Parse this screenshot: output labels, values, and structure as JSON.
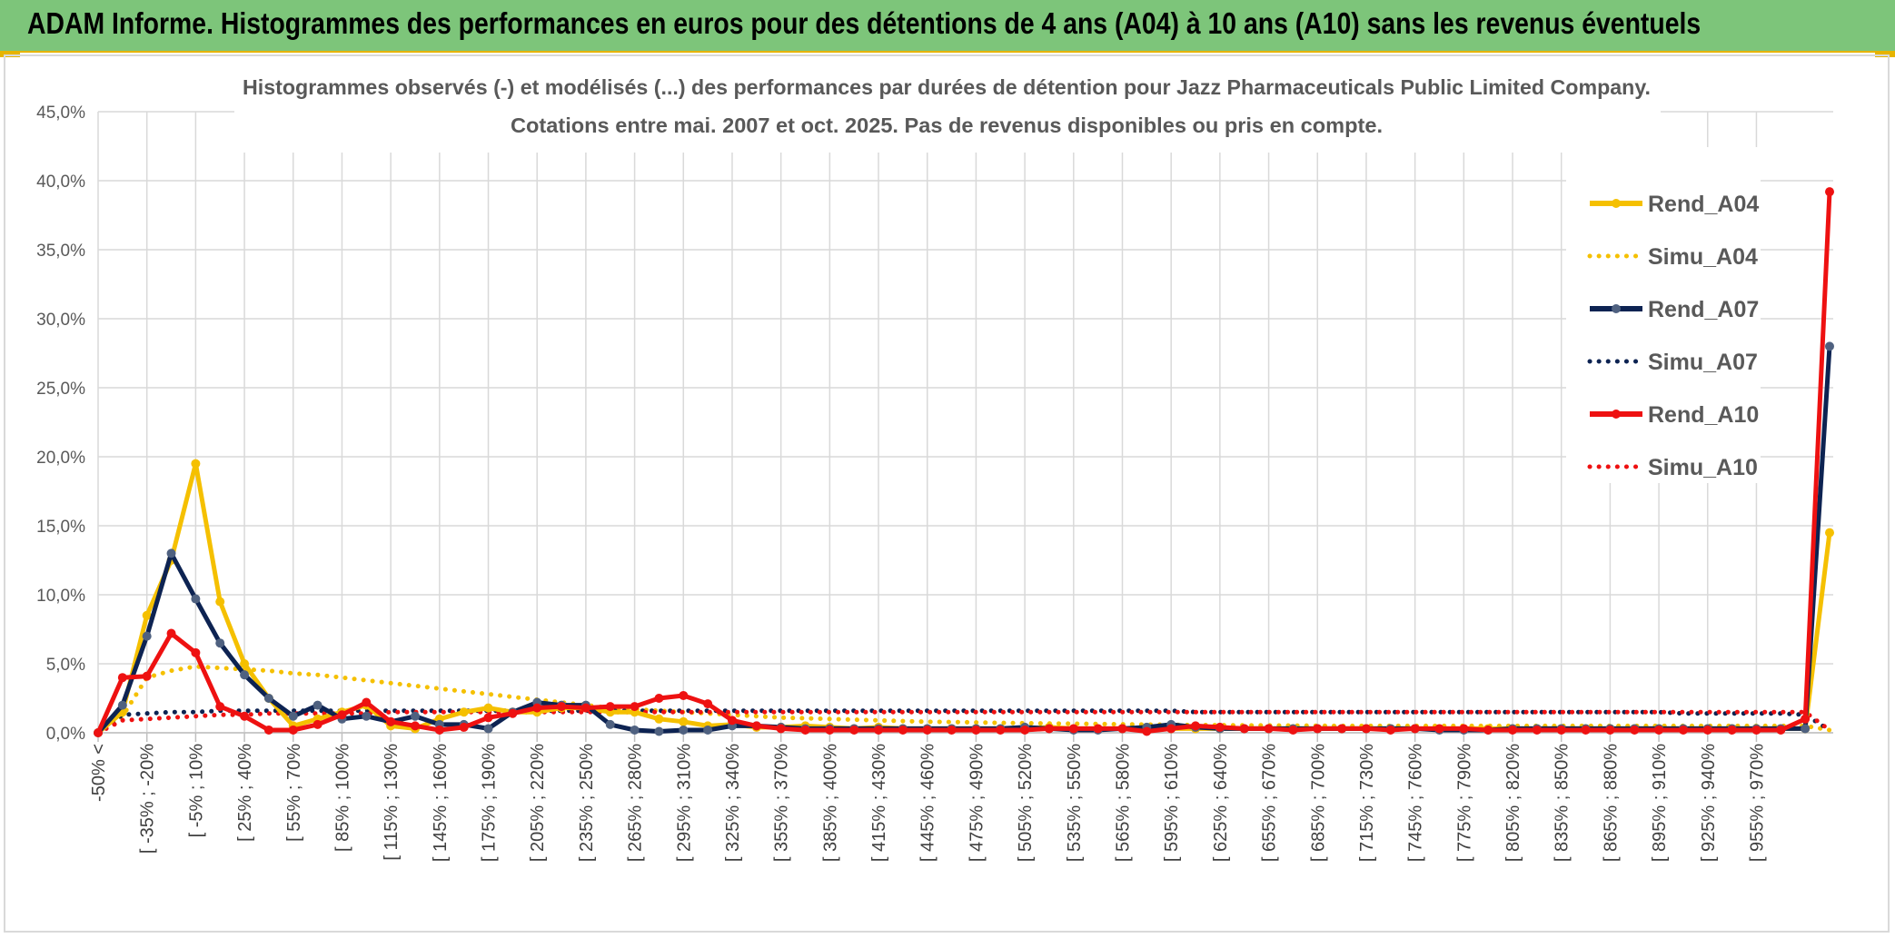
{
  "banner": {
    "title": "ADAM Informe. Histogrammes des performances en euros pour des détentions de 4 ans (A04) à 10 ans (A10) sans les revenus éventuels"
  },
  "chart_data": {
    "type": "line",
    "title": "Histogrammes observés (-) et modélisés (...) des performances par durées de détention pour Jazz Pharmaceuticals Public Limited Company.",
    "subtitle": "Cotations entre mai. 2007 et oct. 2025. Pas de revenus disponibles ou pris en compte.",
    "ylim": [
      0,
      45
    ],
    "yticks": [
      "0,0%",
      "5,0%",
      "10,0%",
      "15,0%",
      "20,0%",
      "25,0%",
      "30,0%",
      "35,0%",
      "40,0%",
      "45,0%"
    ],
    "xtick_labels": [
      "-50% <",
      "[ -35% ; -20%",
      "[ -5% ; 10%",
      "[ 25% ; 40%",
      "[ 55% ; 70%",
      "[ 85% ; 100%",
      "[ 115% ; 130%",
      "[ 145% ; 160%",
      "[ 175% ; 190%",
      "[ 205% ; 220%",
      "[ 235% ; 250%",
      "[ 265% ; 280%",
      "[ 295% ; 310%",
      "[ 325% ; 340%",
      "[ 355% ; 370%",
      "[ 385% ; 400%",
      "[ 415% ; 430%",
      "[ 445% ; 460%",
      "[ 475% ; 490%",
      "[ 505% ; 520%",
      "[ 535% ; 550%",
      "[ 565% ; 580%",
      "[ 595% ; 610%",
      "[ 625% ; 640%",
      "[ 655% ; 670%",
      "[ 685% ; 700%",
      "[ 715% ; 730%",
      "[ 745% ; 760%",
      "[ 775% ; 790%",
      "[ 805% ; 820%",
      "[ 835% ; 850%",
      "[ 865% ; 880%",
      "[ 895% ; 910%",
      "[ 925% ; 940%",
      "[ 955% ; 970%"
    ],
    "grid": true,
    "legend_position": "right",
    "series": [
      {
        "name": "Rend_A04",
        "style": "solid",
        "color": "#f5c000",
        "values": [
          0,
          1.5,
          8.5,
          12.5,
          19.5,
          9.5,
          5,
          2.5,
          0.5,
          1,
          1.5,
          2,
          0.5,
          0.3,
          1,
          1.5,
          1.8,
          1.5,
          1.5,
          1.8,
          1.8,
          1.5,
          1.5,
          1,
          0.8,
          0.5,
          0.6,
          0.4,
          0.4,
          0.5,
          0.4,
          0.3,
          0.4,
          0.3,
          0.3,
          0.3,
          0.3,
          0.3,
          0.3,
          0.4,
          0.3,
          0.3,
          0.3,
          0.3,
          0.3,
          0.3,
          0.3,
          0.3,
          0.3,
          0.3,
          0.3,
          0.3,
          0.3,
          0.3,
          0.3,
          0.3,
          0.3,
          0.3,
          0.3,
          0.3,
          0.3,
          0.3,
          0.3,
          0.3,
          0.3,
          0.3,
          0.3,
          0.3,
          0.3,
          0.3,
          0.3,
          14.5
        ]
      },
      {
        "name": "Simu_A04",
        "style": "dotted",
        "color": "#f5c000",
        "values": [
          0,
          1.2,
          4,
          4.5,
          4.8,
          4.7,
          4.6,
          4.5,
          4.3,
          4.2,
          4,
          3.8,
          3.6,
          3.4,
          3.2,
          3,
          2.8,
          2.6,
          2.4,
          2.2,
          2,
          1.8,
          1.7,
          1.6,
          1.5,
          1.4,
          1.3,
          1.2,
          1.1,
          1.05,
          1,
          0.95,
          0.9,
          0.85,
          0.8,
          0.78,
          0.75,
          0.72,
          0.7,
          0.68,
          0.66,
          0.64,
          0.62,
          0.6,
          0.58,
          0.56,
          0.55,
          0.54,
          0.53,
          0.52,
          0.51,
          0.5,
          0.5,
          0.5,
          0.5,
          0.5,
          0.5,
          0.5,
          0.5,
          0.5,
          0.5,
          0.5,
          0.5,
          0.5,
          0.5,
          0.5,
          0.5,
          0.5,
          0.5,
          0.5,
          0.5,
          0.2
        ]
      },
      {
        "name": "Rend_A07",
        "style": "solid",
        "color": "#0d2352",
        "values": [
          0,
          2,
          7,
          13,
          9.7,
          6.5,
          4.2,
          2.5,
          1.2,
          2,
          1,
          1.2,
          0.8,
          1.2,
          0.6,
          0.6,
          0.3,
          1.5,
          2.2,
          2,
          2,
          0.6,
          0.2,
          0.1,
          0.2,
          0.2,
          0.5,
          0.5,
          0.4,
          0.3,
          0.3,
          0.3,
          0.3,
          0.3,
          0.3,
          0.3,
          0.3,
          0.3,
          0.4,
          0.3,
          0.2,
          0.2,
          0.3,
          0.4,
          0.6,
          0.4,
          0.3,
          0.3,
          0.3,
          0.3,
          0.3,
          0.3,
          0.3,
          0.3,
          0.3,
          0.2,
          0.2,
          0.2,
          0.3,
          0.3,
          0.3,
          0.3,
          0.3,
          0.3,
          0.3,
          0.3,
          0.3,
          0.3,
          0.3,
          0.3,
          0.3,
          28
        ]
      },
      {
        "name": "Simu_A07",
        "style": "dotted",
        "color": "#0d2352",
        "values": [
          0,
          1.3,
          1.4,
          1.5,
          1.5,
          1.6,
          1.6,
          1.6,
          1.6,
          1.6,
          1.6,
          1.6,
          1.6,
          1.6,
          1.6,
          1.6,
          1.6,
          1.6,
          1.6,
          1.6,
          1.6,
          1.6,
          1.6,
          1.6,
          1.6,
          1.6,
          1.6,
          1.6,
          1.6,
          1.6,
          1.6,
          1.6,
          1.6,
          1.6,
          1.6,
          1.6,
          1.6,
          1.6,
          1.6,
          1.6,
          1.6,
          1.6,
          1.6,
          1.6,
          1.6,
          1.5,
          1.5,
          1.5,
          1.5,
          1.5,
          1.5,
          1.5,
          1.5,
          1.5,
          1.5,
          1.5,
          1.5,
          1.5,
          1.5,
          1.5,
          1.5,
          1.5,
          1.5,
          1.5,
          1.5,
          1.4,
          1.4,
          1.4,
          1.4,
          1.4,
          1.3,
          0.2
        ]
      },
      {
        "name": "Rend_A10",
        "style": "solid",
        "color": "#ee1111",
        "values": [
          0,
          4,
          4.1,
          7.2,
          5.8,
          1.9,
          1.2,
          0.2,
          0.2,
          0.6,
          1.3,
          2.2,
          0.8,
          0.5,
          0.2,
          0.4,
          1.1,
          1.4,
          1.8,
          1.9,
          1.8,
          1.9,
          1.9,
          2.5,
          2.7,
          2.1,
          0.9,
          0.5,
          0.3,
          0.2,
          0.2,
          0.2,
          0.2,
          0.2,
          0.2,
          0.2,
          0.2,
          0.2,
          0.2,
          0.3,
          0.3,
          0.3,
          0.3,
          0.1,
          0.3,
          0.5,
          0.4,
          0.3,
          0.3,
          0.2,
          0.3,
          0.3,
          0.3,
          0.2,
          0.3,
          0.3,
          0.3,
          0.2,
          0.2,
          0.2,
          0.2,
          0.2,
          0.2,
          0.2,
          0.2,
          0.2,
          0.2,
          0.2,
          0.2,
          0.2,
          1,
          39.2
        ]
      },
      {
        "name": "Simu_A10",
        "style": "dotted",
        "color": "#ee1111",
        "values": [
          0,
          0.9,
          1,
          1.1,
          1.2,
          1.3,
          1.3,
          1.4,
          1.4,
          1.4,
          1.4,
          1.4,
          1.5,
          1.5,
          1.5,
          1.5,
          1.5,
          1.5,
          1.5,
          1.5,
          1.5,
          1.5,
          1.5,
          1.5,
          1.5,
          1.5,
          1.5,
          1.5,
          1.5,
          1.5,
          1.5,
          1.5,
          1.5,
          1.5,
          1.5,
          1.5,
          1.5,
          1.5,
          1.5,
          1.5,
          1.5,
          1.5,
          1.5,
          1.5,
          1.5,
          1.5,
          1.5,
          1.5,
          1.5,
          1.5,
          1.5,
          1.5,
          1.5,
          1.5,
          1.5,
          1.5,
          1.5,
          1.5,
          1.5,
          1.5,
          1.5,
          1.5,
          1.5,
          1.5,
          1.5,
          1.5,
          1.5,
          1.5,
          1.5,
          1.5,
          1.5,
          0.2
        ]
      }
    ]
  }
}
